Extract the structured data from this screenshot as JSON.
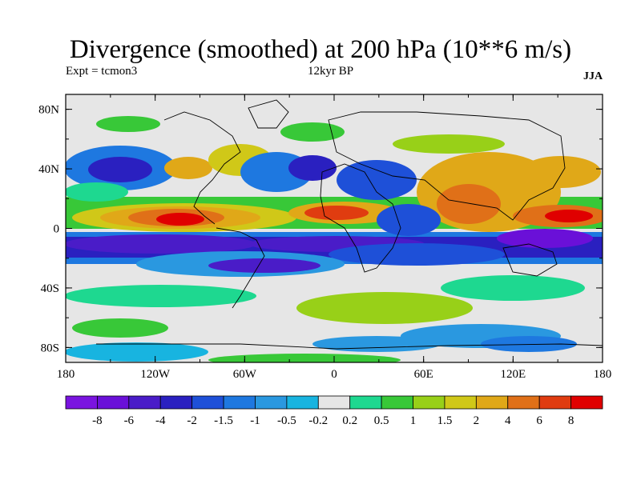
{
  "header": {
    "title": "Divergence (smoothed) at 200 hPa (10**6 m/s)",
    "experiment": "Expt = tcmon3",
    "period": "12kyr BP",
    "season": "JJA"
  },
  "map": {
    "projection": "cylindrical equidistant",
    "lon_range": [
      -180,
      180
    ],
    "lat_range": [
      -90,
      90
    ],
    "lat_tick_labels": [
      "80N",
      "40N",
      "0",
      "40S",
      "80S"
    ],
    "lat_tick_values": [
      80,
      40,
      0,
      -40,
      -80
    ],
    "lon_tick_labels": [
      "180",
      "120W",
      "60W",
      "0",
      "60E",
      "120E",
      "180"
    ],
    "lon_tick_values": [
      -180,
      -120,
      -60,
      0,
      60,
      120,
      180
    ],
    "coastlines": "black"
  },
  "colorbar": {
    "labels": [
      "-8",
      "-6",
      "-4",
      "-2",
      "-1.5",
      "-1",
      "-0.5",
      "-0.2",
      "0.2",
      "0.5",
      "1",
      "1.5",
      "2",
      "4",
      "6",
      "8"
    ],
    "colors": [
      "#7a14e0",
      "#6a10d8",
      "#4a1cc8",
      "#2a20c0",
      "#1e50d8",
      "#1e78e0",
      "#2a98e0",
      "#18b4e0",
      "#e6e6e6",
      "#1ed890",
      "#38c838",
      "#98d018",
      "#d0c818",
      "#e0a818",
      "#e07018",
      "#e03c10",
      "#e00000"
    ]
  }
}
